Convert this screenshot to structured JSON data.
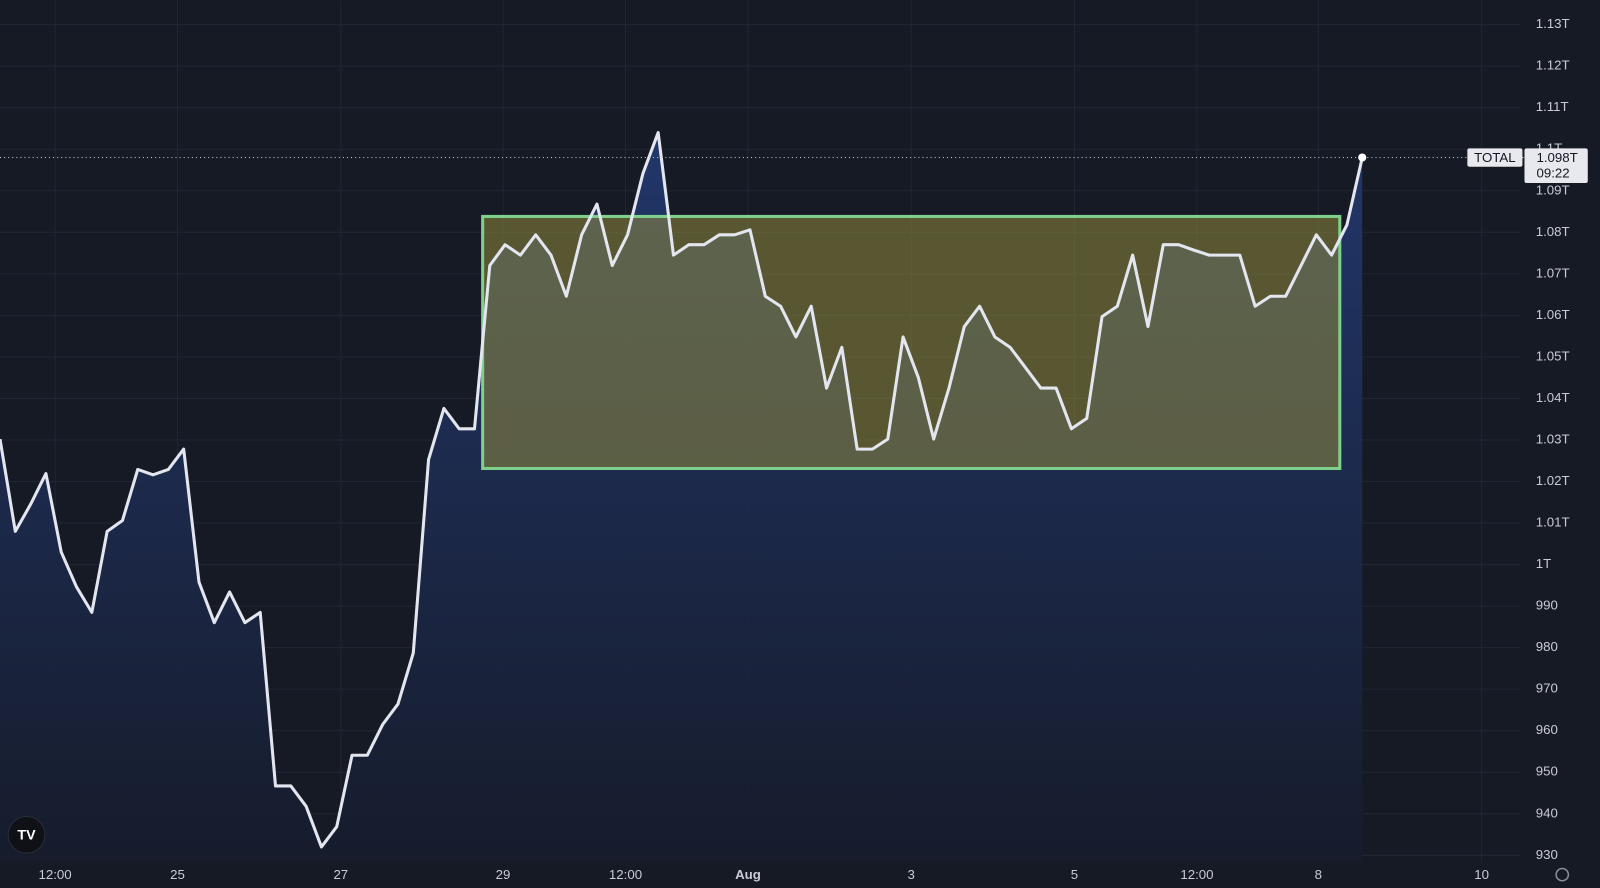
{
  "chart_data": {
    "type": "area",
    "symbol": "TOTAL",
    "last_label": "1.098T",
    "countdown": "09:22",
    "xticks": [
      "12:00",
      "25",
      "27",
      "29",
      "12:00",
      "Aug",
      "3",
      "5",
      "12:00",
      "8",
      "10"
    ],
    "ylim": [
      928.3,
      1135.9
    ],
    "yticks": [
      {
        "value": 1130,
        "label": "1.13T"
      },
      {
        "value": 1120,
        "label": "1.12T"
      },
      {
        "value": 1110,
        "label": "1.11T"
      },
      {
        "value": 1100,
        "label": "1.1T"
      },
      {
        "value": 1090,
        "label": "1.09T"
      },
      {
        "value": 1080,
        "label": "1.08T"
      },
      {
        "value": 1070,
        "label": "1.07T"
      },
      {
        "value": 1060,
        "label": "1.06T"
      },
      {
        "value": 1050,
        "label": "1.05T"
      },
      {
        "value": 1040,
        "label": "1.04T"
      },
      {
        "value": 1030,
        "label": "1.03T"
      },
      {
        "value": 1020,
        "label": "1.02T"
      },
      {
        "value": 1010,
        "label": "1.01T"
      },
      {
        "value": 1000,
        "label": "1T"
      },
      990,
      980,
      970,
      960,
      950,
      940,
      930
    ],
    "grid": true,
    "series": [
      {
        "color": "#e4e6ef",
        "values": [
          1030.2,
          1008,
          1014.5,
          1021.9,
          1003,
          994.6,
          988.5,
          1008,
          1010.6,
          1022.9,
          1021.6,
          1022.9,
          1027.8,
          995.8,
          986,
          993.4,
          986,
          988.5,
          946.7,
          946.7,
          941.8,
          932,
          936.9,
          954.1,
          954.1,
          961.5,
          966.4,
          978.7,
          1025.3,
          1037.6,
          1032.7,
          1032.7,
          1072,
          1077,
          1074.5,
          1079.4,
          1074.5,
          1064.6,
          1079.4,
          1086.8,
          1072,
          1079.4,
          1094.1,
          1104,
          1074.5,
          1077,
          1077,
          1079.4,
          1079.4,
          1080.6,
          1064.6,
          1062.2,
          1054.8,
          1062.2,
          1042.5,
          1052.3,
          1027.8,
          1027.8,
          1030.2,
          1054.8,
          1045,
          1030.2,
          1042.5,
          1057.3,
          1062.2,
          1054.8,
          1052.3,
          1047.4,
          1042.5,
          1042.5,
          1032.7,
          1035.2,
          1059.7,
          1062.2,
          1074.5,
          1057.3,
          1077,
          1077,
          1075.7,
          1074.5,
          1074.5,
          1074.5,
          1062.2,
          1064.6,
          1064.6,
          1072,
          1079.4,
          1074.5,
          1081.8,
          1098
        ]
      }
    ]
  }
}
